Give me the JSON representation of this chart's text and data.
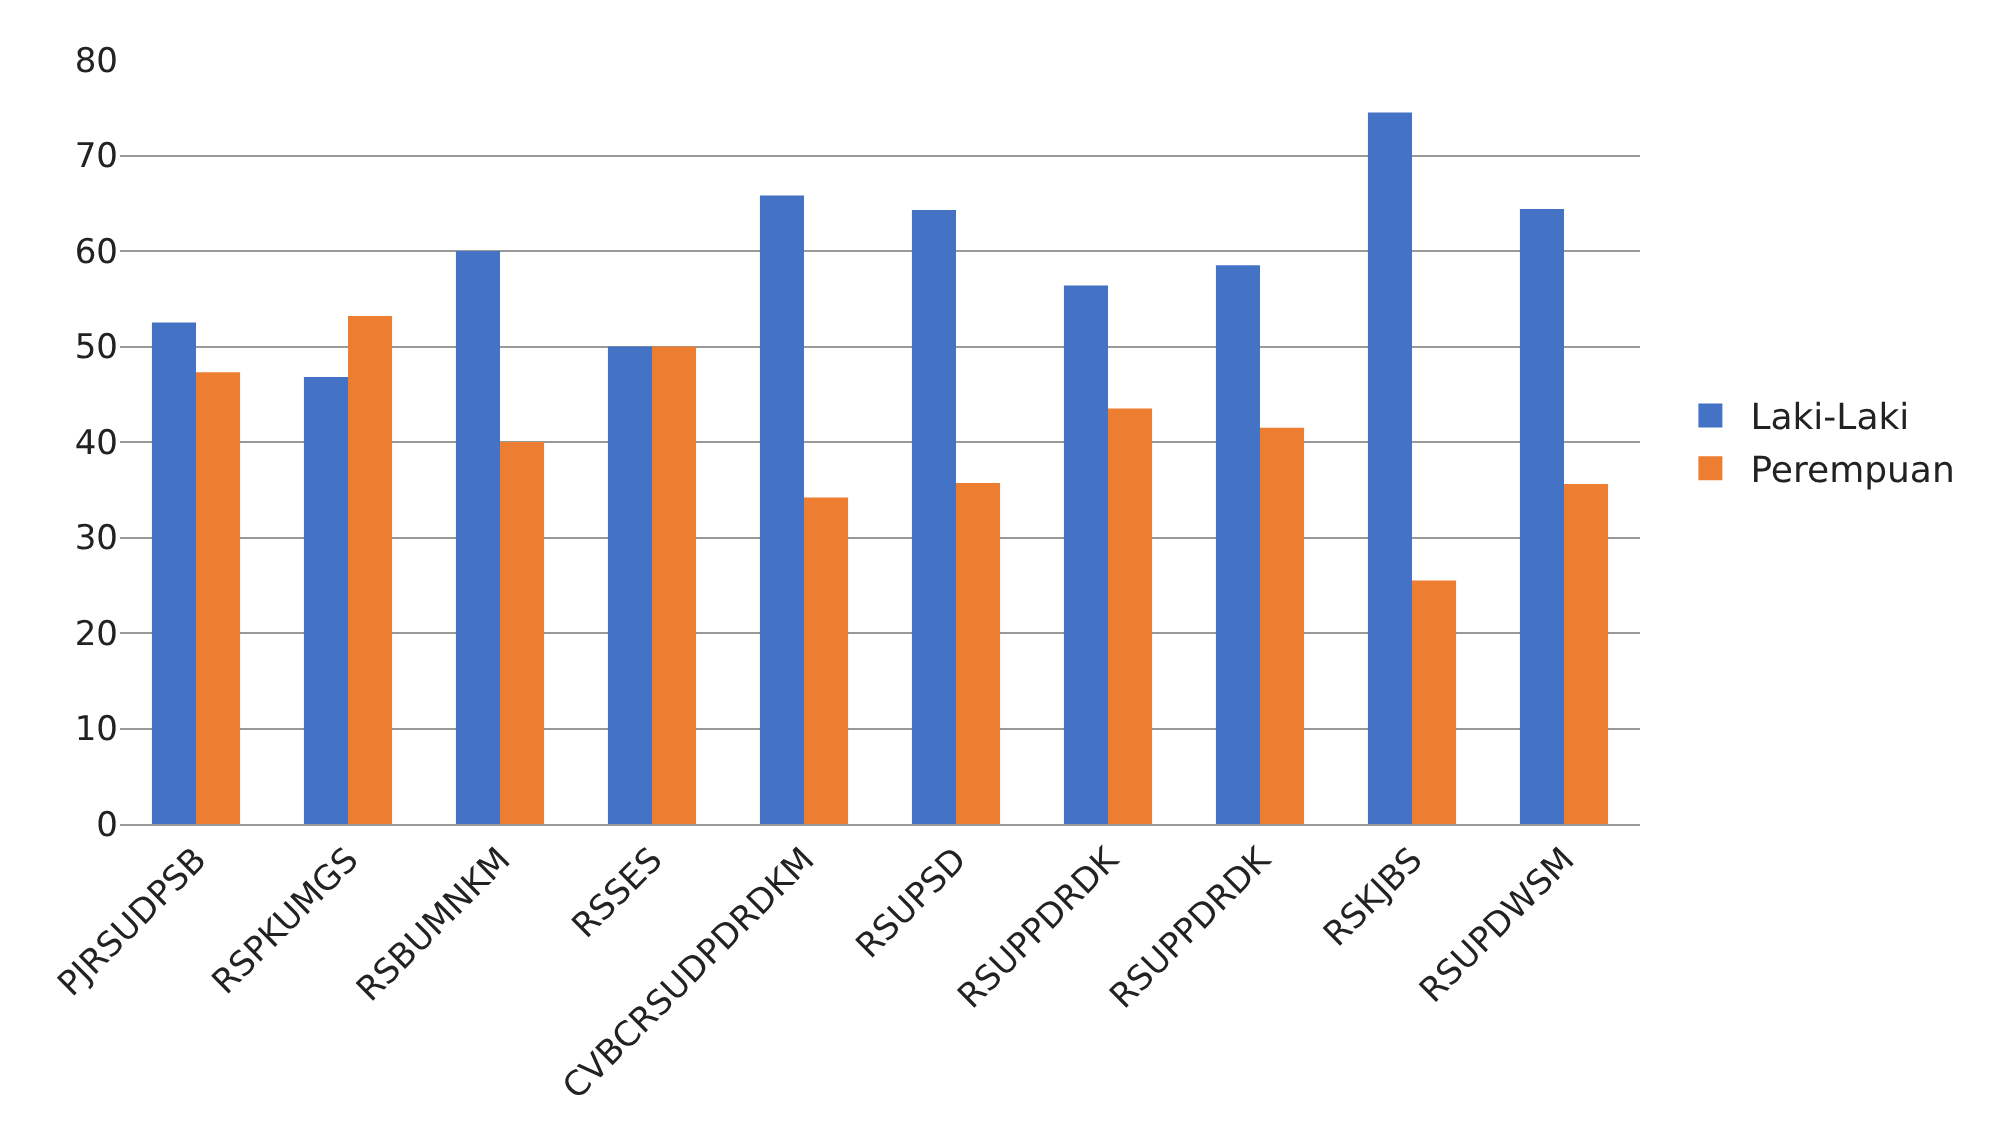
{
  "chart_data": {
    "type": "bar",
    "categories": [
      "PJRSUDPSB",
      "RSPKUMGS",
      "RSBUMNKM",
      "RSSES",
      "CVBCRSUDPDRDKM",
      "RSUPSD",
      "RSUPPDRDK",
      "RSUPPDRDK",
      "RSKJBS",
      "RSUPDWSM"
    ],
    "series": [
      {
        "name": "Laki-Laki",
        "color": "#4472c4",
        "values": [
          52.5,
          46.8,
          60,
          50,
          65.8,
          64.3,
          56.4,
          58.5,
          74.5,
          64.4
        ]
      },
      {
        "name": "Perempuan",
        "color": "#ed7d31",
        "values": [
          47.3,
          53.2,
          40,
          50,
          34.2,
          35.7,
          43.5,
          41.5,
          25.5,
          35.6
        ]
      }
    ],
    "ylim": [
      0,
      80
    ],
    "yticks": [
      0,
      10,
      20,
      30,
      40,
      50,
      60,
      70,
      80
    ],
    "grid": "y",
    "legend": "right"
  }
}
